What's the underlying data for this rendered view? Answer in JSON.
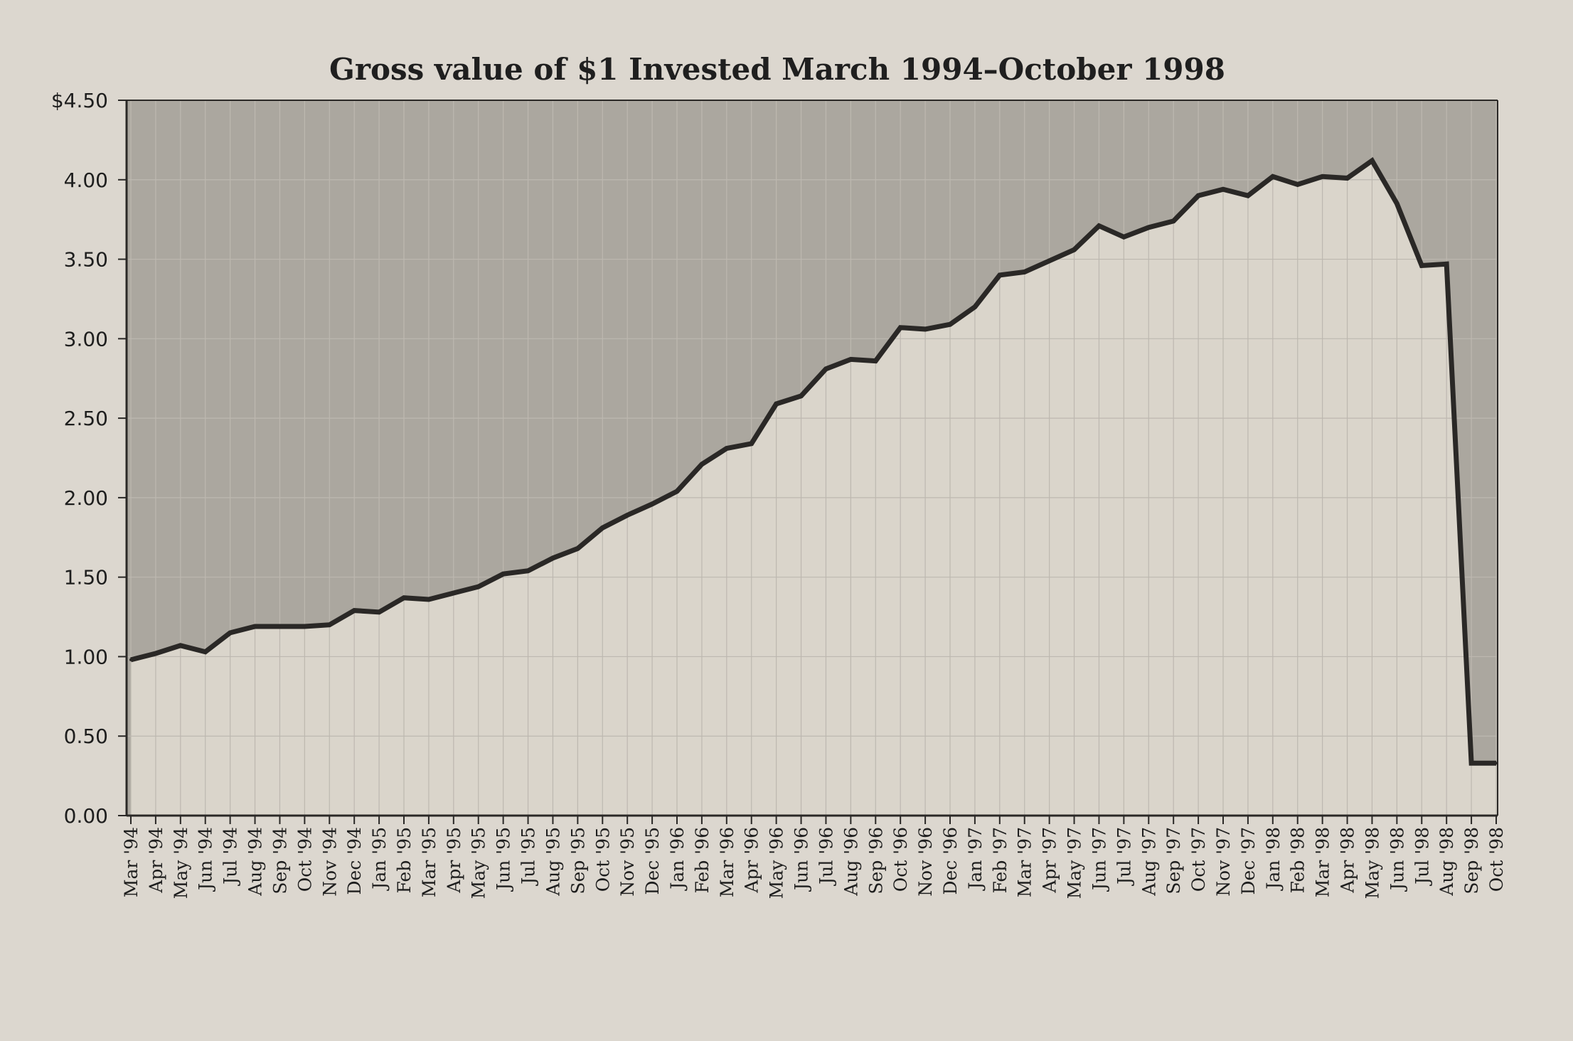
{
  "chart_data": {
    "type": "area",
    "title": "Gross value of $1 Invested March 1994–October 1998",
    "xlabel": "",
    "ylabel": "",
    "ylim": [
      0,
      4.5
    ],
    "y_ticks": [
      {
        "value": 4.5,
        "label": "$4.50"
      },
      {
        "value": 4.0,
        "label": "4.00"
      },
      {
        "value": 3.5,
        "label": "3.50"
      },
      {
        "value": 3.0,
        "label": "3.00"
      },
      {
        "value": 2.5,
        "label": "2.50"
      },
      {
        "value": 2.0,
        "label": "2.00"
      },
      {
        "value": 1.5,
        "label": "1.50"
      },
      {
        "value": 1.0,
        "label": "1.00"
      },
      {
        "value": 0.5,
        "label": "0.50"
      },
      {
        "value": 0.0,
        "label": "0.00"
      }
    ],
    "categories": [
      "Mar '94",
      "Apr '94",
      "May '94",
      "Jun '94",
      "Jul '94",
      "Aug '94",
      "Sep '94",
      "Oct '94",
      "Nov '94",
      "Dec '94",
      "Jan '95",
      "Feb '95",
      "Mar '95",
      "Apr '95",
      "May '95",
      "Jun '95",
      "Jul '95",
      "Aug '95",
      "Sep '95",
      "Oct '95",
      "Nov '95",
      "Dec '95",
      "Jan '96",
      "Feb '96",
      "Mar '96",
      "Apr '96",
      "May '96",
      "Jun '96",
      "Jul '96",
      "Aug '96",
      "Sep '96",
      "Oct '96",
      "Nov '96",
      "Dec '96",
      "Jan '97",
      "Feb '97",
      "Mar '97",
      "Apr '97",
      "May '97",
      "Jun '97",
      "Jul '97",
      "Aug '97",
      "Sep '97",
      "Oct '97",
      "Nov '97",
      "Dec '97",
      "Jan '98",
      "Feb '98",
      "Mar '98",
      "Apr '98",
      "May '98",
      "Jun '98",
      "Jul '98",
      "Aug '98",
      "Sep '98",
      "Oct '98"
    ],
    "series": [
      {
        "values": [
          0.98,
          1.02,
          1.07,
          1.03,
          1.15,
          1.19,
          1.19,
          1.19,
          1.2,
          1.29,
          1.28,
          1.37,
          1.36,
          1.4,
          1.44,
          1.52,
          1.54,
          1.62,
          1.68,
          1.81,
          1.89,
          1.96,
          2.04,
          2.21,
          2.31,
          2.34,
          2.59,
          2.64,
          2.81,
          2.87,
          2.86,
          3.07,
          3.06,
          3.09,
          3.2,
          3.4,
          3.42,
          3.49,
          3.56,
          3.71,
          3.64,
          3.7,
          3.74,
          3.9,
          3.94,
          3.9,
          4.02,
          3.97,
          4.02,
          4.01,
          4.12,
          3.85,
          3.46,
          3.47,
          0.33,
          0.33
        ]
      }
    ],
    "grid": true,
    "legend": "none",
    "colors": {
      "background": "#dcd7cf",
      "upper_fill": "#aba79f",
      "lower_fill": "#dad5cb",
      "line": "#2a2826",
      "grid": "#bdb8b0",
      "axis": "#2a2826"
    }
  }
}
